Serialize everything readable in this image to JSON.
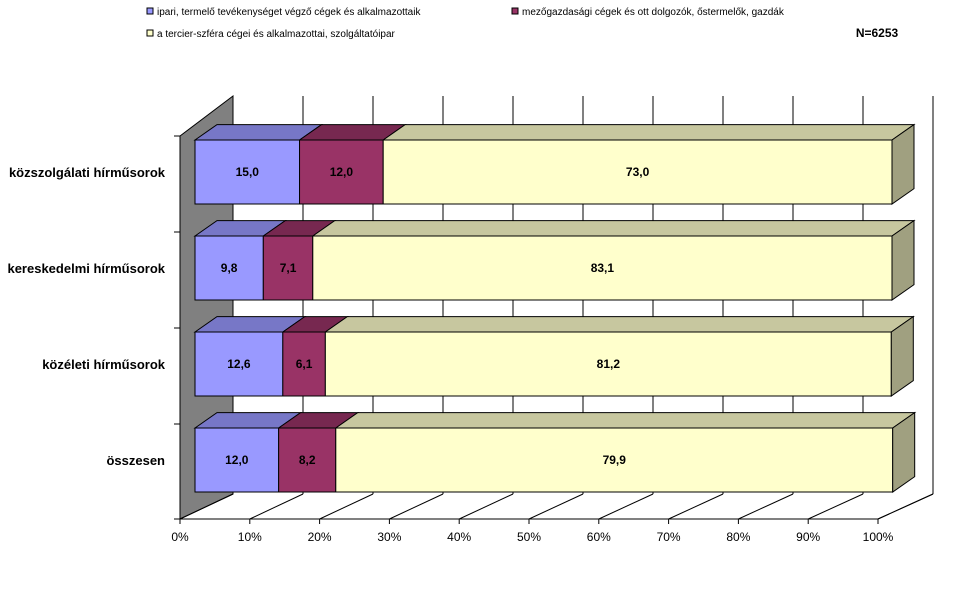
{
  "chart_data": {
    "type": "bar",
    "stacked": "percent",
    "orientation": "horizontal",
    "three_d": true,
    "title": "",
    "xlabel": "",
    "ylabel": "",
    "note": "N=6253",
    "categories": [
      "közszolgálati hírműsorok",
      "kereskedelmi hírműsorok",
      "közéleti hírműsorok",
      "összesen"
    ],
    "series": [
      {
        "name": "ipari, termelő tevékenységet végző cégek és alkalmazottaik",
        "values": [
          15.0,
          9.8,
          12.6,
          12.0
        ],
        "labels": [
          "15,0",
          "9,8",
          "12,6",
          "12,0"
        ],
        "color": "#9999FF"
      },
      {
        "name": "mezőgazdasági cégek és ott dolgozók, őstermelők, gazdák",
        "values": [
          12.0,
          7.1,
          6.1,
          8.2
        ],
        "labels": [
          "12,0",
          "7,1",
          "6,1",
          "8,2"
        ],
        "color": "#993366"
      },
      {
        "name": "a tercier-szféra cégei és alkalmazottai, szolgáltatóipar",
        "values": [
          73.0,
          83.1,
          81.2,
          79.9
        ],
        "labels": [
          "73,0",
          "83,1",
          "81,2",
          "79,9"
        ],
        "color": "#FFFFCC"
      }
    ],
    "x_ticks": [
      "0%",
      "10%",
      "20%",
      "30%",
      "40%",
      "50%",
      "60%",
      "70%",
      "80%",
      "90%",
      "100%"
    ],
    "xlim": [
      0,
      100
    ],
    "grid": true,
    "legend_position": "top"
  }
}
